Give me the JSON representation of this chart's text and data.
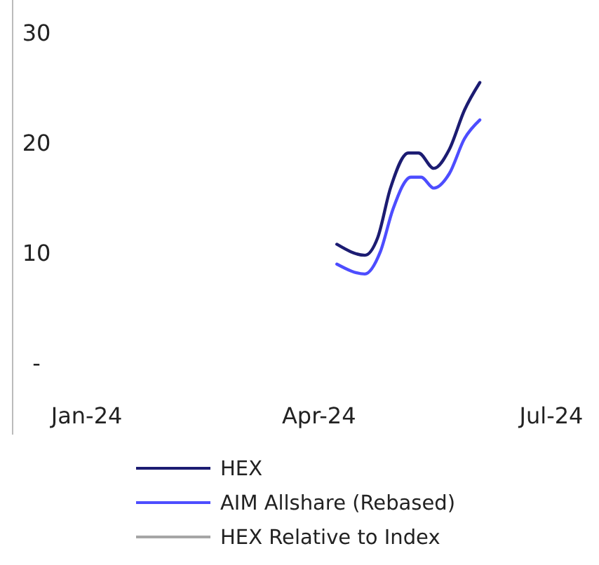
{
  "chart_data": {
    "type": "line",
    "xlim": [
      "2023-12-03",
      "2024-07-01"
    ],
    "xticks": [
      {
        "value": "2024-01-01",
        "label": "Jan-24"
      },
      {
        "value": "2024-04-01",
        "label": "Apr-24"
      },
      {
        "value": "2024-07-01",
        "label": "Jul-24"
      }
    ],
    "ylim": [
      -6.5,
      33
    ],
    "yticks": [
      {
        "value": 0,
        "label": "-"
      },
      10,
      20,
      30
    ],
    "grid": false,
    "legend": "bottom",
    "series": [
      {
        "name": "HEX",
        "color": "#1c1c72",
        "x": [
          "2024-04-08",
          "2024-04-19",
          "2024-04-24",
          "2024-04-29",
          "2024-05-06",
          "2024-05-10",
          "2024-05-16",
          "2024-05-22",
          "2024-05-28",
          "2024-06-03"
        ],
        "values": [
          10.8,
          9.8,
          11.4,
          15.9,
          19.1,
          19.1,
          17.7,
          19.4,
          23,
          25.5
        ]
      },
      {
        "name": "AIM Allshare (Rebased)",
        "color": "#4d4dff",
        "x": [
          "2024-04-08",
          "2024-04-19",
          "2024-04-25",
          "2024-04-30",
          "2024-05-07",
          "2024-05-11",
          "2024-05-16",
          "2024-05-22",
          "2024-05-28",
          "2024-06-03"
        ],
        "values": [
          9,
          8.1,
          10.1,
          14,
          16.9,
          16.9,
          15.9,
          17.2,
          20.4,
          22.1
        ]
      },
      {
        "name": "HEX Relative to Index",
        "color": "#a6a6a6"
      }
    ]
  }
}
